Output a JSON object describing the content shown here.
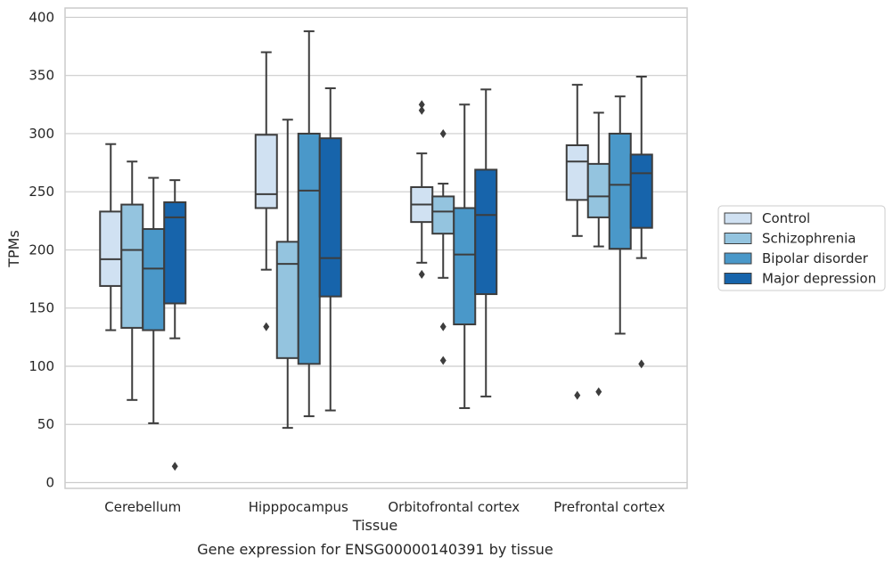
{
  "chart_data": {
    "type": "box",
    "title": "Gene expression for ENSG00000140391 by tissue",
    "xlabel": "Tissue",
    "ylabel": "TPMs",
    "ylim": [
      -5,
      408
    ],
    "yticks": [
      0,
      50,
      100,
      150,
      200,
      250,
      300,
      350,
      400
    ],
    "grid": true,
    "legend_position": "right",
    "categories": [
      "Cerebellum",
      "Hipppocampus",
      "Orbitofrontal cortex",
      "Prefrontal cortex"
    ],
    "series": [
      {
        "name": "Control",
        "color": "#d0e1f2",
        "boxes": [
          {
            "q1": 169,
            "median": 192,
            "q3": 233,
            "whisker_low": 131,
            "whisker_high": 291,
            "outliers": []
          },
          {
            "q1": 236,
            "median": 248,
            "q3": 299,
            "whisker_low": 183,
            "whisker_high": 370,
            "outliers": [
              134
            ]
          },
          {
            "q1": 224,
            "median": 239,
            "q3": 254,
            "whisker_low": 189,
            "whisker_high": 283,
            "outliers": [
              179,
              320,
              325
            ]
          },
          {
            "q1": 243,
            "median": 276,
            "q3": 290,
            "whisker_low": 212,
            "whisker_high": 342,
            "outliers": [
              75
            ]
          }
        ]
      },
      {
        "name": "Schizophrenia",
        "color": "#94c4df",
        "boxes": [
          {
            "q1": 133,
            "median": 200,
            "q3": 239,
            "whisker_low": 71,
            "whisker_high": 276,
            "outliers": []
          },
          {
            "q1": 107,
            "median": 188,
            "q3": 207,
            "whisker_low": 47,
            "whisker_high": 312,
            "outliers": []
          },
          {
            "q1": 214,
            "median": 233,
            "q3": 246,
            "whisker_low": 176,
            "whisker_high": 257,
            "outliers": [
              105,
              134,
              300
            ]
          },
          {
            "q1": 228,
            "median": 246,
            "q3": 274,
            "whisker_low": 203,
            "whisker_high": 318,
            "outliers": [
              78
            ]
          }
        ]
      },
      {
        "name": "Bipolar disorder",
        "color": "#4a98c9",
        "boxes": [
          {
            "q1": 131,
            "median": 184,
            "q3": 218,
            "whisker_low": 51,
            "whisker_high": 262,
            "outliers": []
          },
          {
            "q1": 102,
            "median": 251,
            "q3": 300,
            "whisker_low": 57,
            "whisker_high": 388,
            "outliers": []
          },
          {
            "q1": 136,
            "median": 196,
            "q3": 236,
            "whisker_low": 64,
            "whisker_high": 325,
            "outliers": []
          },
          {
            "q1": 201,
            "median": 256,
            "q3": 300,
            "whisker_low": 128,
            "whisker_high": 332,
            "outliers": []
          }
        ]
      },
      {
        "name": "Major depression",
        "color": "#1764ab",
        "boxes": [
          {
            "q1": 154,
            "median": 228,
            "q3": 241,
            "whisker_low": 124,
            "whisker_high": 260,
            "outliers": [
              14
            ]
          },
          {
            "q1": 160,
            "median": 193,
            "q3": 296,
            "whisker_low": 62,
            "whisker_high": 339,
            "outliers": []
          },
          {
            "q1": 162,
            "median": 230,
            "q3": 269,
            "whisker_low": 74,
            "whisker_high": 338,
            "outliers": []
          },
          {
            "q1": 219,
            "median": 266,
            "q3": 282,
            "whisker_low": 193,
            "whisker_high": 349,
            "outliers": [
              102
            ]
          }
        ]
      }
    ]
  }
}
